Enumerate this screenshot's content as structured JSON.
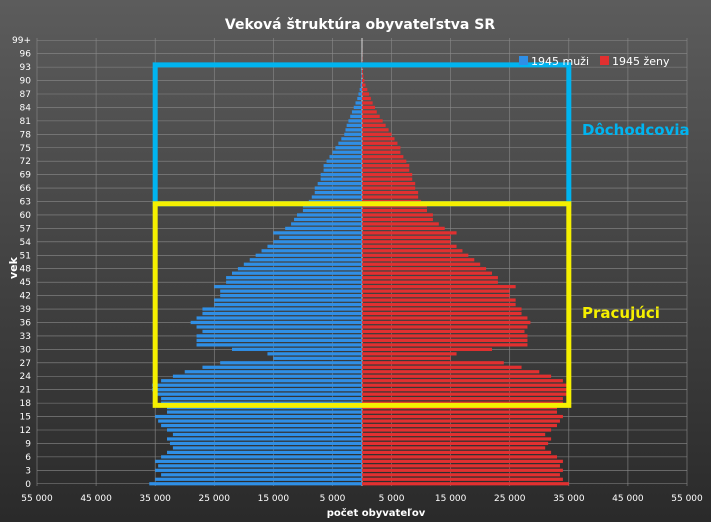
{
  "chart_data": {
    "type": "bar",
    "orientation": "horizontal-population-pyramid",
    "title": "Veková štruktúra obyvateľstva SR",
    "xlabel": "počet obyvateľov",
    "ylabel": "vek",
    "xlim": [
      -55000,
      55000
    ],
    "x_tick_values": [
      -55000,
      -45000,
      -35000,
      -25000,
      -15000,
      -5000,
      5000,
      15000,
      25000,
      35000,
      45000,
      55000
    ],
    "x_tick_labels": [
      "55 000",
      "45 000",
      "35 000",
      "25 000",
      "15 000",
      "5 000",
      "5 000",
      "15 000",
      "25 000",
      "35 000",
      "45 000",
      "55 000"
    ],
    "y_tick_labels": [
      "0",
      "3",
      "6",
      "9",
      "12",
      "15",
      "18",
      "21",
      "24",
      "27",
      "30",
      "33",
      "36",
      "39",
      "42",
      "45",
      "48",
      "51",
      "54",
      "57",
      "60",
      "63",
      "66",
      "69",
      "72",
      "75",
      "78",
      "81",
      "84",
      "87",
      "90",
      "93",
      "96",
      "99+"
    ],
    "grid": true,
    "legend_position": "top-right",
    "categories": [
      "0",
      "1",
      "2",
      "3",
      "4",
      "5",
      "6",
      "7",
      "8",
      "9",
      "10",
      "11",
      "12",
      "13",
      "14",
      "15",
      "16",
      "17",
      "18",
      "19",
      "20",
      "21",
      "22",
      "23",
      "24",
      "25",
      "26",
      "27",
      "28",
      "29",
      "30",
      "31",
      "32",
      "33",
      "34",
      "35",
      "36",
      "37",
      "38",
      "39",
      "40",
      "41",
      "42",
      "43",
      "44",
      "45",
      "46",
      "47",
      "48",
      "49",
      "50",
      "51",
      "52",
      "53",
      "54",
      "55",
      "56",
      "57",
      "58",
      "59",
      "60",
      "61",
      "62",
      "63",
      "64",
      "65",
      "66",
      "67",
      "68",
      "69",
      "70",
      "71",
      "72",
      "73",
      "74",
      "75",
      "76",
      "77",
      "78",
      "79",
      "80",
      "81",
      "82",
      "83",
      "84",
      "85",
      "86",
      "87",
      "88",
      "89",
      "90",
      "91",
      "92",
      "93",
      "94",
      "95",
      "96",
      "97",
      "98",
      "99+"
    ],
    "series": [
      {
        "name": "1945 muži",
        "color": "#2f8fe6",
        "values": [
          36000,
          35000,
          34000,
          35000,
          34500,
          35000,
          34000,
          33000,
          32000,
          32500,
          33000,
          32000,
          33000,
          34000,
          34500,
          35000,
          33000,
          33000,
          34000,
          34000,
          35000,
          35500,
          35500,
          34000,
          32000,
          30000,
          27000,
          24000,
          15000,
          16000,
          22000,
          28000,
          28000,
          28000,
          27000,
          28000,
          29000,
          28000,
          27000,
          27000,
          25000,
          25000,
          24000,
          24000,
          25000,
          23000,
          23000,
          22000,
          21000,
          20000,
          19000,
          18000,
          17000,
          16000,
          15000,
          14000,
          15000,
          13000,
          12000,
          11500,
          11000,
          10000,
          10000,
          9000,
          8500,
          8000,
          8000,
          7500,
          7000,
          7000,
          6500,
          6500,
          6000,
          5500,
          5000,
          4500,
          4000,
          3500,
          3000,
          2800,
          2600,
          2300,
          2000,
          1700,
          1400,
          1100,
          800,
          600,
          400,
          250,
          150,
          100,
          60,
          40,
          20,
          10,
          6,
          4,
          2,
          1
        ]
      },
      {
        "name": "1945 ženy",
        "color": "#e23030",
        "values": [
          35000,
          34000,
          33500,
          34000,
          33500,
          34000,
          33000,
          32000,
          31000,
          31500,
          32000,
          31000,
          32000,
          33000,
          33500,
          34000,
          33000,
          33000,
          34000,
          34000,
          35000,
          35000,
          35000,
          34000,
          32000,
          30000,
          27000,
          24000,
          15000,
          16000,
          22000,
          28000,
          28000,
          28000,
          27500,
          28000,
          28500,
          28000,
          27000,
          27000,
          26000,
          26000,
          25000,
          25000,
          26000,
          23000,
          23000,
          22000,
          21000,
          20000,
          19000,
          18000,
          17000,
          16000,
          15000,
          15000,
          16000,
          14000,
          13000,
          12000,
          12000,
          11000,
          11000,
          10000,
          9500,
          9500,
          9000,
          9000,
          8500,
          8500,
          8000,
          8000,
          7500,
          7000,
          6500,
          6500,
          6000,
          5500,
          5000,
          4500,
          4000,
          3500,
          3000,
          2500,
          2200,
          1800,
          1500,
          1200,
          900,
          600,
          400,
          250,
          150,
          100,
          50,
          30,
          15,
          8,
          4,
          2
        ]
      }
    ],
    "annotations": [
      {
        "label": "Dôchodcovia",
        "age_from": 63,
        "age_to": 93,
        "x_from": -35000,
        "x_to": 35000,
        "color": "#00b4f0"
      },
      {
        "label": "Pracujúci",
        "age_from": 18,
        "age_to": 62,
        "x_from": -35000,
        "x_to": 35000,
        "color": "#f5f000"
      }
    ]
  }
}
